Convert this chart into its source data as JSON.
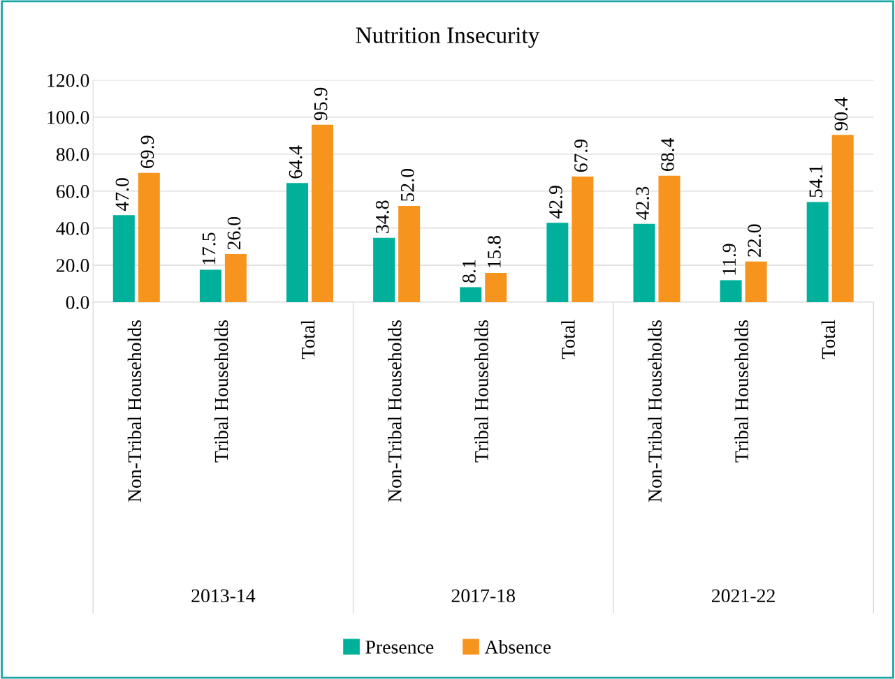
{
  "chart_data": {
    "type": "bar",
    "title": "Nutrition Insecurity",
    "categories": [
      "Non-Tribal Households",
      "Tribal Households",
      "Total",
      "Non-Tribal Households",
      "Tribal Households",
      "Total",
      "Non-Tribal Households",
      "Tribal Households",
      "Total"
    ],
    "series": [
      {
        "name": "Presence",
        "color": "#00b09b",
        "values": [
          47.0,
          17.5,
          64.4,
          34.8,
          8.1,
          42.9,
          42.3,
          11.9,
          54.1
        ],
        "value_labels": [
          "47.0",
          "17.5",
          "64.4",
          "34.8",
          "8.1",
          "42.9",
          "42.3",
          "11.9",
          "54.1"
        ]
      },
      {
        "name": "Absence",
        "color": "#f7941d",
        "values": [
          69.9,
          26.0,
          95.9,
          52.0,
          15.8,
          67.9,
          68.4,
          22.0,
          90.4
        ],
        "value_labels": [
          "69.9",
          "26.0",
          "95.9",
          "52.0",
          "15.8",
          "67.9",
          "68.4",
          "22.0",
          "90.4"
        ]
      }
    ],
    "annotations": [
      "2013-14",
      "2017-18",
      "2021-22"
    ],
    "ylim": [
      0,
      120
    ],
    "yticks": [
      {
        "value": 0,
        "label": "0.0"
      },
      {
        "value": 20,
        "label": "20.0"
      },
      {
        "value": 40,
        "label": "40.0"
      },
      {
        "value": 60,
        "label": "60.0"
      },
      {
        "value": 80,
        "label": "80.0"
      },
      {
        "value": 100,
        "label": "100.0"
      },
      {
        "value": 120,
        "label": "120.0"
      }
    ],
    "grid": "y",
    "legend": "bottom"
  }
}
